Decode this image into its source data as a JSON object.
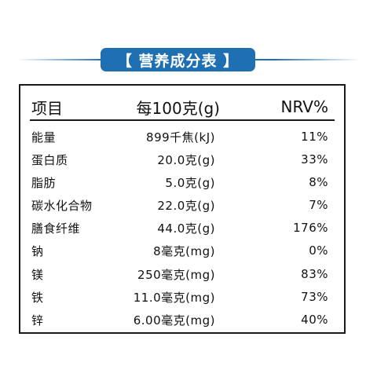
{
  "title": "【 营养成分表 】",
  "table": {
    "headers": [
      "项目",
      "每100克(g)",
      "NRV%"
    ],
    "rows": [
      [
        "能量",
        "899千焦(kJ)",
        "11%"
      ],
      [
        "蛋白质",
        "20.0克(g)",
        "33%"
      ],
      [
        "脂肪",
        "5.0克(g)",
        "8%"
      ],
      [
        "碳水化合物",
        "22.0克(g)",
        "7%"
      ],
      [
        "膳食纤维",
        "44.0克(g)",
        "176%"
      ],
      [
        "钠",
        "8毫克(mg)",
        "0%"
      ],
      [
        "镁",
        "250毫克(mg)",
        "83%"
      ],
      [
        "铁",
        "11.0毫克(mg)",
        "73%"
      ],
      [
        "锌",
        "6.00毫克(mg)",
        "40%"
      ]
    ]
  }
}
